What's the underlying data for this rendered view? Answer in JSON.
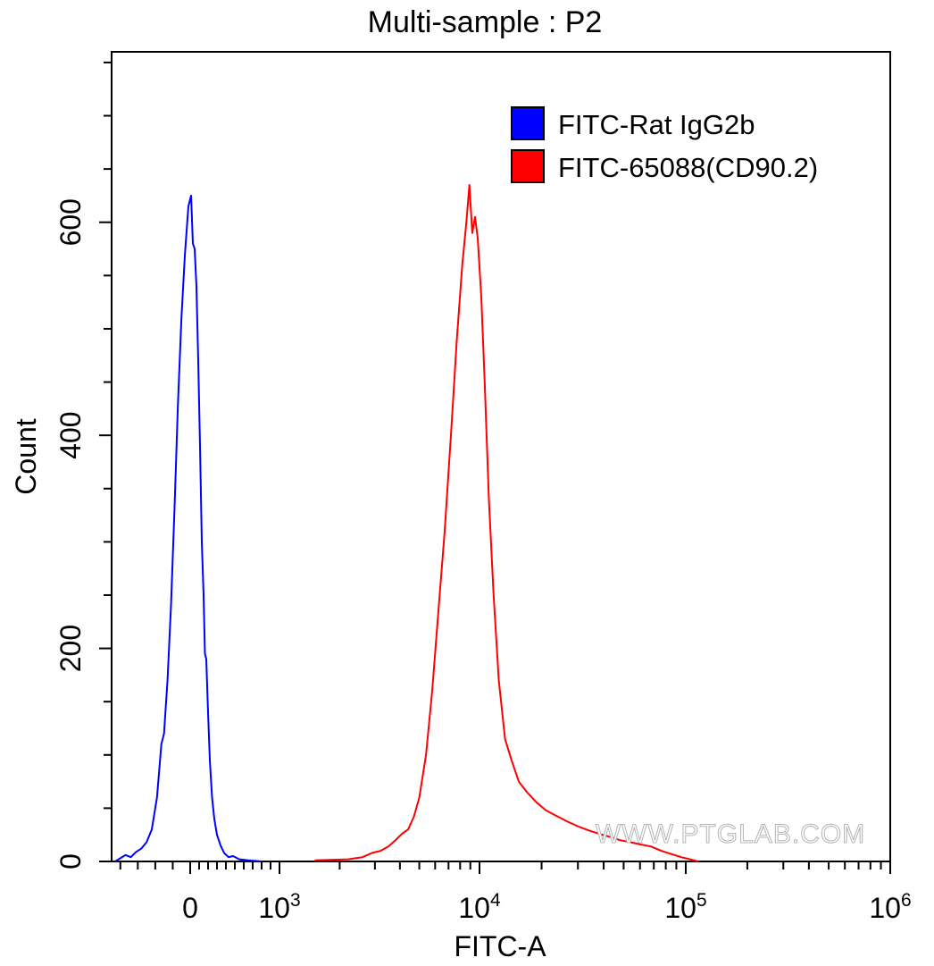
{
  "chart_data": {
    "type": "histogram",
    "title": "Multi-sample : P2",
    "xlabel": "FITC-A",
    "ylabel": "Count",
    "xscale": "biexponential",
    "ylim": [
      0,
      760
    ],
    "grid": false,
    "legend_position": "top-right",
    "watermark": "WWW.PTGLAB.COM",
    "x_ticks": [
      {
        "value": 0,
        "base": "0",
        "exp": ""
      },
      {
        "value": 1000,
        "base": "10",
        "exp": "3"
      },
      {
        "value": 10000,
        "base": "10",
        "exp": "4"
      },
      {
        "value": 100000,
        "base": "10",
        "exp": "5"
      },
      {
        "value": 1000000,
        "base": "10",
        "exp": "6"
      }
    ],
    "y_ticks": [
      0,
      200,
      400,
      600
    ],
    "series": [
      {
        "name": "FITC-Rat IgG2b",
        "color": "#0000ff",
        "points": [
          [
            -430,
            0
          ],
          [
            -400,
            3
          ],
          [
            -370,
            6
          ],
          [
            -340,
            4
          ],
          [
            -310,
            9
          ],
          [
            -280,
            12
          ],
          [
            -250,
            18
          ],
          [
            -220,
            30
          ],
          [
            -190,
            60
          ],
          [
            -165,
            110
          ],
          [
            -150,
            120
          ],
          [
            -130,
            170
          ],
          [
            -110,
            240
          ],
          [
            -90,
            330
          ],
          [
            -70,
            430
          ],
          [
            -50,
            510
          ],
          [
            -30,
            570
          ],
          [
            -10,
            615
          ],
          [
            10,
            625
          ],
          [
            30,
            580
          ],
          [
            50,
            575
          ],
          [
            70,
            540
          ],
          [
            90,
            470
          ],
          [
            110,
            390
          ],
          [
            130,
            300
          ],
          [
            150,
            250
          ],
          [
            165,
            195
          ],
          [
            180,
            190
          ],
          [
            200,
            140
          ],
          [
            220,
            95
          ],
          [
            245,
            60
          ],
          [
            270,
            40
          ],
          [
            300,
            25
          ],
          [
            340,
            15
          ],
          [
            380,
            8
          ],
          [
            430,
            4
          ],
          [
            480,
            5
          ],
          [
            550,
            2
          ],
          [
            650,
            1
          ],
          [
            800,
            0
          ]
        ]
      },
      {
        "name": "FITC-65088(CD90.2)",
        "color": "#ff0000",
        "points": [
          [
            1500,
            1
          ],
          [
            2200,
            2
          ],
          [
            2600,
            4
          ],
          [
            2900,
            8
          ],
          [
            3200,
            10
          ],
          [
            3500,
            14
          ],
          [
            3800,
            20
          ],
          [
            4100,
            26
          ],
          [
            4400,
            30
          ],
          [
            4700,
            42
          ],
          [
            5000,
            60
          ],
          [
            5400,
            100
          ],
          [
            5800,
            160
          ],
          [
            6200,
            230
          ],
          [
            6700,
            310
          ],
          [
            7200,
            400
          ],
          [
            7700,
            490
          ],
          [
            8200,
            560
          ],
          [
            8600,
            600
          ],
          [
            8900,
            635
          ],
          [
            9200,
            590
          ],
          [
            9500,
            605
          ],
          [
            9800,
            585
          ],
          [
            10200,
            530
          ],
          [
            10600,
            450
          ],
          [
            11100,
            340
          ],
          [
            11700,
            250
          ],
          [
            12400,
            170
          ],
          [
            13300,
            115
          ],
          [
            14300,
            95
          ],
          [
            15500,
            75
          ],
          [
            17000,
            65
          ],
          [
            19000,
            55
          ],
          [
            21000,
            48
          ],
          [
            24000,
            42
          ],
          [
            27000,
            37
          ],
          [
            30000,
            33
          ],
          [
            34000,
            29
          ],
          [
            38000,
            26
          ],
          [
            43000,
            23
          ],
          [
            48000,
            20
          ],
          [
            54000,
            18
          ],
          [
            60000,
            16
          ],
          [
            68000,
            14
          ],
          [
            76000,
            10
          ],
          [
            85000,
            7
          ],
          [
            95000,
            4
          ],
          [
            105000,
            2
          ],
          [
            115000,
            0
          ]
        ]
      }
    ]
  }
}
